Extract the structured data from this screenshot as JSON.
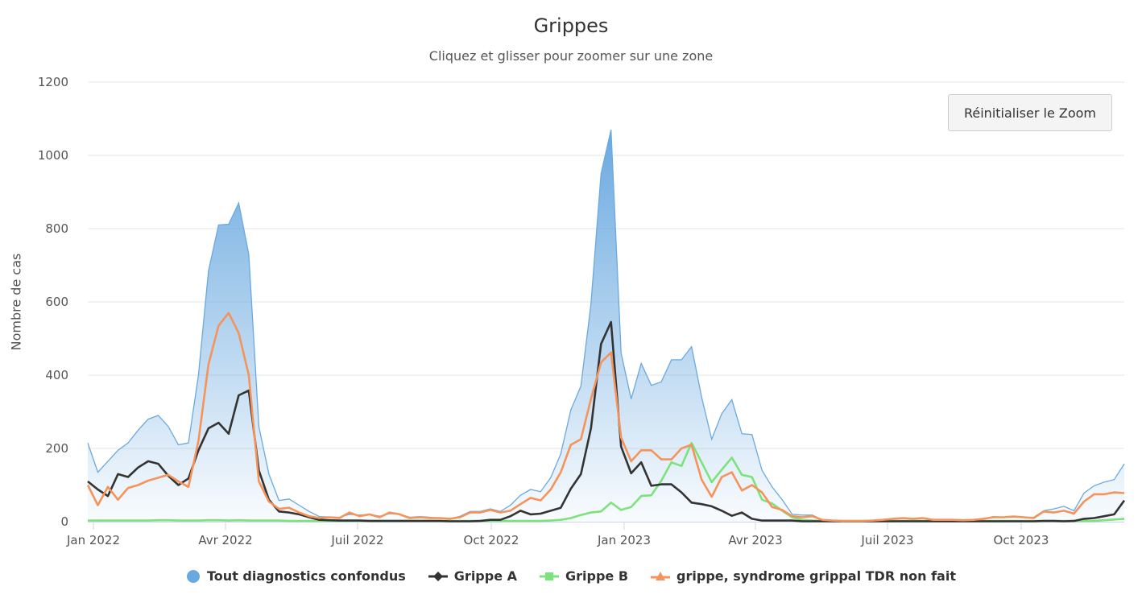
{
  "chart": {
    "title": "Grippes",
    "subtitle": "Cliquez et glisser pour zoomer sur une zone",
    "reset_zoom_label": "Réinitialiser le Zoom",
    "ylabel": "Nombre de cas"
  },
  "legend": [
    {
      "label": "Tout diagnostics confondus",
      "color": "#6aa9e0",
      "symbol": "circle"
    },
    {
      "label": "Grippe A",
      "color": "#333333",
      "symbol": "diamond"
    },
    {
      "label": "Grippe B",
      "color": "#7ce27c",
      "symbol": "square"
    },
    {
      "label": "grippe, syndrome grippal TDR non fait",
      "color": "#f5945a",
      "symbol": "triangle"
    }
  ],
  "chart_data": {
    "type": "area",
    "title": "Grippes",
    "subtitle": "Cliquez et glisser pour zoomer sur une zone",
    "xlabel": "",
    "ylabel": "Nombre de cas",
    "ylim": [
      0,
      1200
    ],
    "yticks": [
      0,
      200,
      400,
      600,
      800,
      1000,
      1200
    ],
    "xtick_labels": [
      "Jan 2022",
      "Avr 2022",
      "Juil 2022",
      "Oct 2022",
      "Jan 2023",
      "Avr 2023",
      "Juil 2023",
      "Oct 2023"
    ],
    "grid": true,
    "legend_position": "bottom",
    "x_unit": "week",
    "x_start": "late Dec 2021",
    "series": [
      {
        "name": "Tout diagnostics confondus",
        "type": "area",
        "color": "#6aa9e0",
        "values": [
          215,
          135,
          165,
          195,
          215,
          250,
          280,
          290,
          260,
          210,
          215,
          400,
          685,
          810,
          812,
          870,
          730,
          260,
          130,
          58,
          62,
          45,
          28,
          14,
          13,
          12,
          20,
          18,
          20,
          15,
          22,
          20,
          12,
          14,
          12,
          10,
          8,
          15,
          28,
          28,
          35,
          28,
          45,
          72,
          88,
          82,
          120,
          185,
          305,
          370,
          595,
          950,
          1070,
          460,
          335,
          432,
          372,
          382,
          442,
          442,
          478,
          340,
          225,
          295,
          333,
          240,
          238,
          140,
          95,
          60,
          20,
          18,
          18,
          5,
          4,
          3,
          2,
          2,
          3,
          5,
          8,
          10,
          8,
          10,
          5,
          5,
          5,
          4,
          5,
          8,
          14,
          12,
          15,
          12,
          12,
          30,
          35,
          42,
          30,
          78,
          98,
          108,
          115,
          158
        ]
      },
      {
        "name": "Grippe A",
        "type": "line",
        "color": "#333333",
        "values": [
          110,
          88,
          70,
          130,
          122,
          148,
          165,
          158,
          125,
          100,
          118,
          195,
          255,
          270,
          240,
          345,
          358,
          140,
          60,
          28,
          25,
          20,
          12,
          5,
          4,
          3,
          3,
          3,
          2,
          2,
          2,
          2,
          2,
          2,
          2,
          2,
          1,
          1,
          1,
          2,
          5,
          5,
          15,
          30,
          20,
          22,
          30,
          38,
          90,
          130,
          255,
          485,
          545,
          205,
          132,
          162,
          98,
          102,
          102,
          80,
          52,
          48,
          42,
          30,
          16,
          25,
          8,
          3,
          3,
          3,
          3,
          1,
          1,
          1,
          1,
          1,
          1,
          1,
          1,
          1,
          1,
          1,
          1,
          1,
          1,
          1,
          1,
          1,
          1,
          1,
          1,
          1,
          1,
          1,
          1,
          2,
          2,
          1,
          2,
          8,
          10,
          15,
          20,
          58
        ]
      },
      {
        "name": "Grippe B",
        "type": "line",
        "color": "#7ce27c",
        "values": [
          3,
          3,
          3,
          3,
          3,
          3,
          3,
          4,
          4,
          3,
          3,
          3,
          4,
          4,
          3,
          4,
          3,
          3,
          3,
          3,
          2,
          2,
          2,
          2,
          2,
          2,
          2,
          2,
          2,
          2,
          2,
          2,
          2,
          2,
          2,
          2,
          2,
          2,
          2,
          2,
          2,
          2,
          2,
          2,
          2,
          2,
          3,
          5,
          10,
          18,
          25,
          28,
          52,
          32,
          40,
          70,
          72,
          112,
          162,
          152,
          215,
          162,
          108,
          142,
          175,
          128,
          122,
          60,
          50,
          30,
          12,
          5,
          3,
          2,
          2,
          2,
          2,
          2,
          2,
          2,
          2,
          2,
          2,
          2,
          2,
          2,
          2,
          2,
          2,
          2,
          2,
          2,
          2,
          2,
          2,
          2,
          2,
          2,
          2,
          2,
          2,
          4,
          6,
          8
        ]
      },
      {
        "name": "grippe, syndrome grippal TDR non fait",
        "type": "line",
        "color": "#f5945a",
        "values": [
          100,
          45,
          95,
          60,
          92,
          100,
          112,
          120,
          128,
          110,
          95,
          220,
          430,
          535,
          570,
          515,
          400,
          110,
          55,
          35,
          38,
          25,
          15,
          10,
          12,
          10,
          25,
          15,
          20,
          12,
          25,
          20,
          10,
          12,
          10,
          10,
          8,
          12,
          25,
          25,
          32,
          25,
          30,
          48,
          65,
          58,
          88,
          135,
          210,
          225,
          335,
          435,
          462,
          230,
          165,
          195,
          195,
          170,
          170,
          200,
          210,
          115,
          68,
          122,
          135,
          85,
          100,
          80,
          40,
          32,
          15,
          12,
          15,
          5,
          3,
          2,
          2,
          2,
          3,
          5,
          8,
          10,
          8,
          10,
          5,
          5,
          5,
          4,
          5,
          8,
          12,
          12,
          14,
          12,
          10,
          28,
          25,
          30,
          22,
          55,
          75,
          75,
          80,
          78
        ]
      }
    ]
  }
}
